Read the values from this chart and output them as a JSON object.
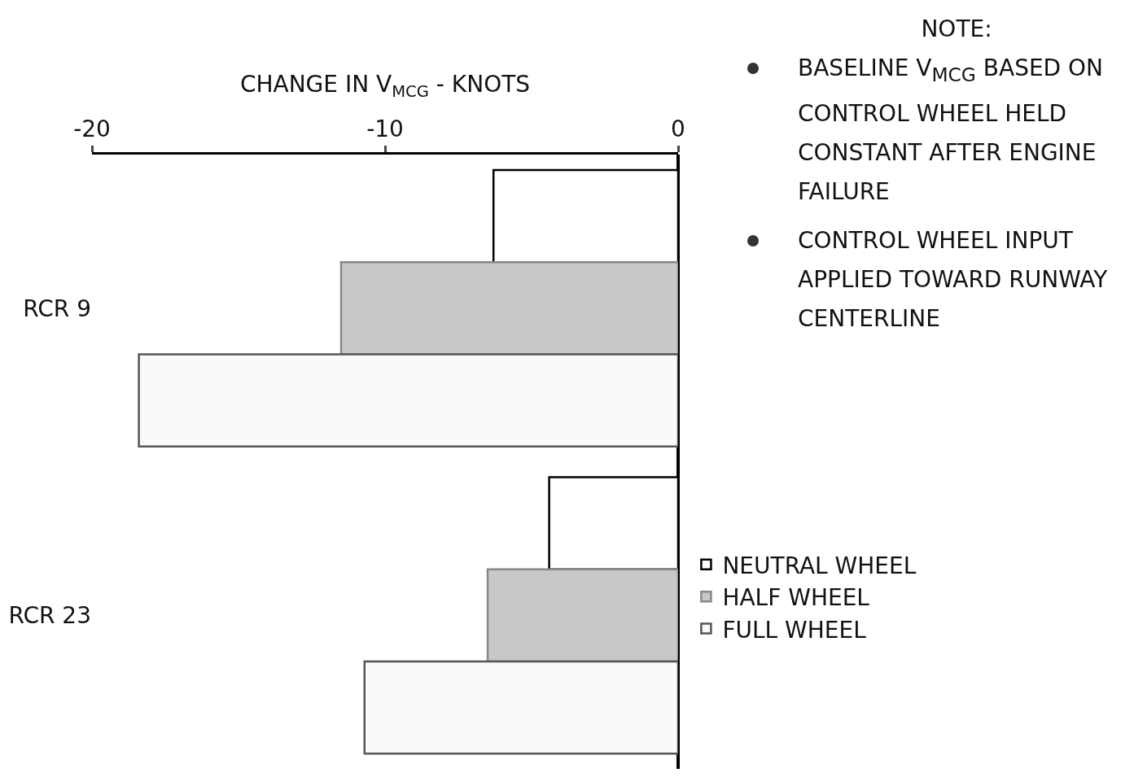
{
  "chart_data": {
    "type": "bar",
    "orientation": "horizontal",
    "xlabel": "CHANGE IN V$_{MCG}$ - KNOTS",
    "categories": [
      "RCR 9",
      "RCR 23"
    ],
    "series": [
      {
        "name": "NEUTRAL WHEEL",
        "color": "#ffffff",
        "values": [
          -6.3,
          -4.4
        ]
      },
      {
        "name": "HALF WHEEL",
        "color": "#c8c8c8",
        "values": [
          -11.5,
          -6.5
        ]
      },
      {
        "name": "FULL WHEEL",
        "color": "#fafafa",
        "values": [
          -18.4,
          -10.7
        ]
      }
    ],
    "xlim": [
      -20,
      0
    ],
    "xticks": [
      -20,
      -10,
      0
    ],
    "grid": false,
    "legend": "right",
    "annotations": [
      "NOTE:",
      "BASELINE V$_{MCG}$ BASED ON CONTROL WHEEL HELD CONSTANT AFTER ENGINE FAILURE",
      "CONTROL WHEEL INPUT APPLIED TOWARD RUNWAY CENTERLINE"
    ]
  }
}
